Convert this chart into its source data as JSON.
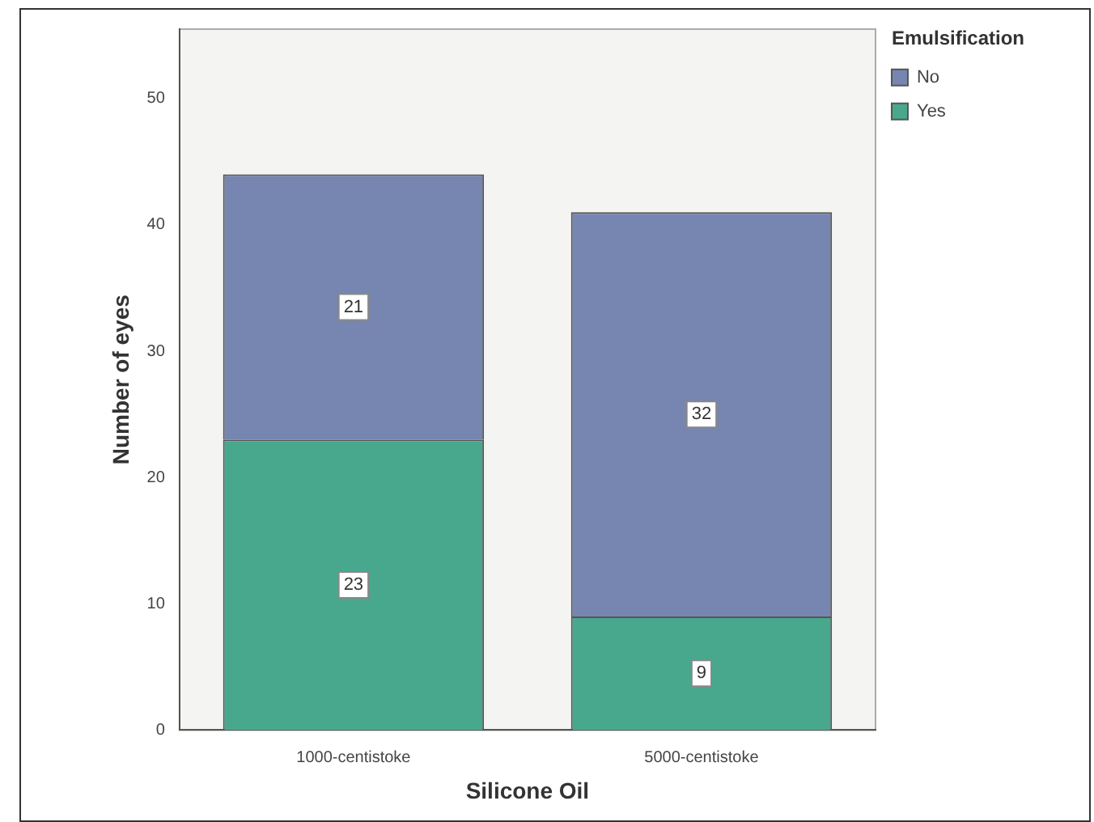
{
  "chart_data": {
    "type": "bar",
    "stacked": true,
    "xlabel": "Silicone Oil",
    "ylabel": "Number of eyes",
    "legend_title": "Emulsification",
    "legend": "top right",
    "grid": false,
    "data_labels": true,
    "categories": [
      "1000-centistoke",
      "5000-centistoke"
    ],
    "series": [
      {
        "name": "Yes",
        "color": "#48a88e",
        "values": [
          23,
          9
        ]
      },
      {
        "name": "No",
        "color": "#7686b0",
        "values": [
          21,
          32
        ]
      }
    ],
    "ylim": [
      0,
      55.5
    ],
    "yticks": [
      0,
      10,
      20,
      30,
      40,
      50
    ]
  }
}
